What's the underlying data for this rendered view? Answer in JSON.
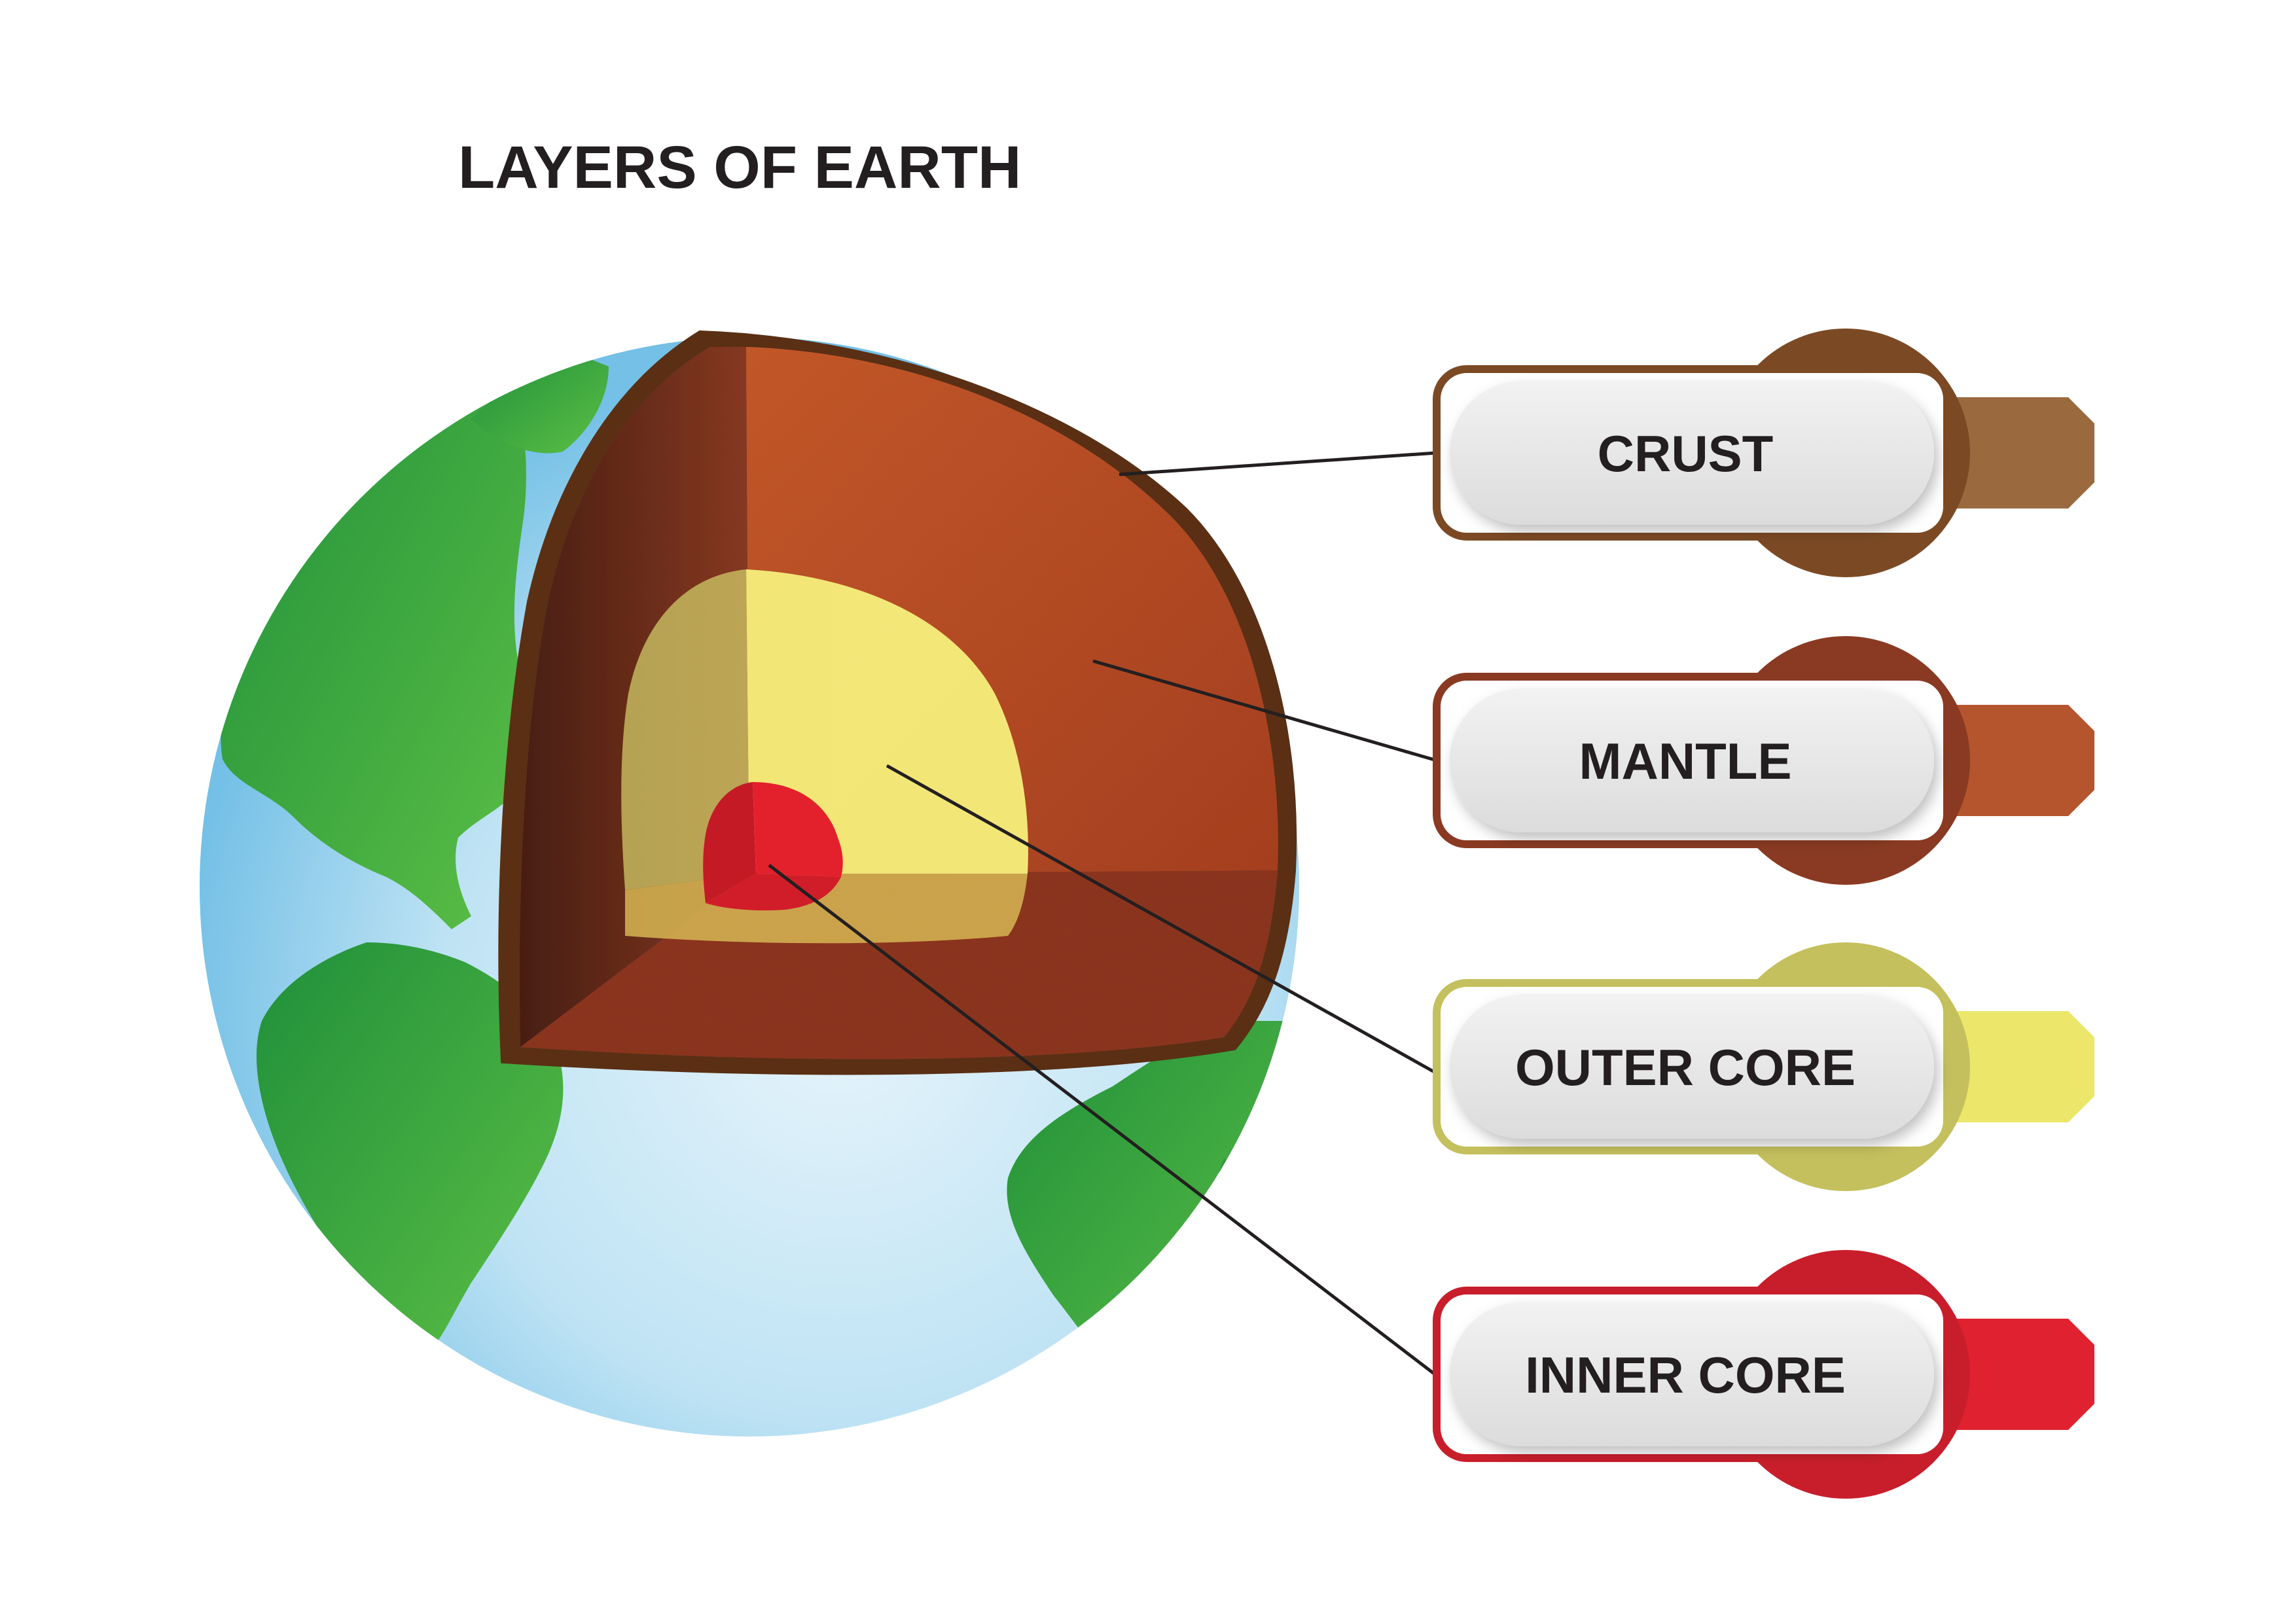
{
  "title": "LAYERS OF EARTH",
  "labels": [
    {
      "text": "CRUST",
      "color": "#7b4a24",
      "light": "#9a6a3e"
    },
    {
      "text": "MANTLE",
      "color": "#8a3a22",
      "light": "#b5552e"
    },
    {
      "text": "OUTER CORE",
      "color": "#c4c05e",
      "light": "#ece66a"
    },
    {
      "text": "INNER CORE",
      "color": "#c81e2b",
      "light": "#e02230"
    }
  ],
  "colors": {
    "ocean": "#8fcdea",
    "land": "#3aa53f",
    "crust": "#5a2f14",
    "mantle": "#b84a24",
    "outer_core": "#f5ee78",
    "inner_core": "#e01f2b",
    "leader_line": "#231f20"
  }
}
